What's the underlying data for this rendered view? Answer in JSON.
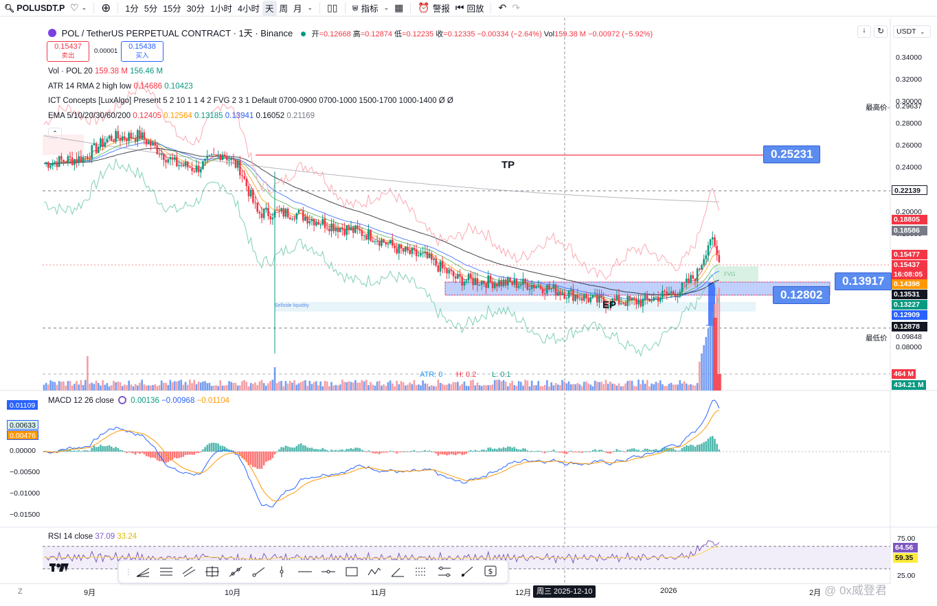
{
  "toolbar": {
    "symbol": "POLUSDT.P",
    "timeframes": [
      "1分",
      "5分",
      "15分",
      "30分",
      "1小时",
      "4小时",
      "天",
      "周",
      "月"
    ],
    "active_timeframe": "天",
    "indicators_label": "指标",
    "alert_label": "警报",
    "replay_label": "回放"
  },
  "header": {
    "title": "POL / TetherUS PERPETUAL CONTRACT · 1天 · Binance",
    "ohlc": {
      "open_label": "开",
      "open": "=0.12668",
      "high_label": "高",
      "high": "=0.12874",
      "low_label": "低",
      "low": "=0.12235",
      "close_label": "收",
      "close": "=0.12335",
      "change": "−0.00334 (−2.64%)"
    },
    "vol_label": "Vol",
    "vol_value": "159.38 M",
    "vol_change": "−0.00972 (−5.92%)",
    "currency": "USDT"
  },
  "order": {
    "sell_price": "0.15437",
    "sell_label": "卖出",
    "spread": "0.00001",
    "buy_price": "0.15438",
    "buy_label": "买入"
  },
  "indicators": [
    {
      "name": "Vol · POL 20",
      "values": [
        "159.38 M",
        "156.46 M"
      ]
    },
    {
      "name": "ATR 14 RMA 2 high low",
      "values": [
        "0.14686",
        "0.10423"
      ]
    },
    {
      "name": "ICT Concepts [LuxAlgo] Present 5 2 10 1 1 4 2 FVG 2 3 1 Default 0700-0900 0700-1000 1500-1700 1000-1400  Ø  Ø",
      "values": []
    },
    {
      "name": "EMA 5/10/20/30/60/200",
      "values": [
        "0.12405",
        "0.12564",
        "0.13185",
        "0.13941",
        "0.16052",
        "0.21169"
      ]
    }
  ],
  "annotations": {
    "tp_label": "TP",
    "ep_label": "EP",
    "tp_price": "0.25231",
    "entry_high": "0.13917",
    "entry_low": "0.12802",
    "fvg_label": "FVG",
    "sellside_label": "Sellside liquidity",
    "atr_text": "ATR: 0",
    "h_text": "H: 0.2",
    "l_text": "L: 0.1"
  },
  "price_axis": {
    "ticks": [
      "0.34000",
      "0.32000",
      "0.30000",
      "0.28000",
      "0.26000",
      "0.24000",
      "0.20000",
      "0.18000",
      "0.08000"
    ],
    "highest_label": "最高价",
    "highest": "0.29637",
    "lowest_label": "最低价",
    "lowest": "0.09848",
    "levels": [
      {
        "value": "0.22139",
        "color": "#ffffff",
        "text": "#131722"
      },
      {
        "value": "0.18805",
        "color": "#f23645",
        "text": "#ffffff"
      },
      {
        "value": "0.18586",
        "color": "#787b86",
        "text": "#ffffff"
      },
      {
        "value": "0.15477",
        "color": "#f23645",
        "text": "#ffffff"
      },
      {
        "value": "0.15437",
        "color": "#f23645",
        "text": "#ffffff"
      },
      {
        "value": "16:08:05",
        "color": "#f23645",
        "text": "#ffffff"
      },
      {
        "value": "0.14398",
        "color": "#ff9800",
        "text": "#ffffff"
      },
      {
        "value": "0.13531",
        "color": "#131722",
        "text": "#ffffff"
      },
      {
        "value": "0.13227",
        "color": "#089981",
        "text": "#ffffff"
      },
      {
        "value": "0.12909",
        "color": "#2962ff",
        "text": "#ffffff"
      },
      {
        "value": "0.12878",
        "color": "#131722",
        "text": "#ffffff"
      }
    ],
    "vol_levels": [
      {
        "value": "464 M",
        "color": "#f23645"
      },
      {
        "value": "434.21 M",
        "color": "#089981"
      }
    ]
  },
  "macd": {
    "title": "MACD 12 26 close",
    "values": [
      "0.00136",
      "−0.00968",
      "−0.01104"
    ],
    "axis": [
      "0.00000",
      "−0.00500",
      "−0.01000",
      "−0.01500"
    ],
    "labels": [
      {
        "value": "0.01109",
        "color": "#2962ff"
      },
      {
        "value": "0.00633",
        "color": "#d7f0ea"
      },
      {
        "value": "0.00476",
        "color": "#ff9800"
      }
    ]
  },
  "rsi": {
    "title": "RSI 14 close",
    "values": [
      "37.09",
      "33.24"
    ],
    "axis": [
      "75.00",
      "25.00"
    ],
    "labels": [
      {
        "value": "64.56",
        "color": "#7e57c2"
      },
      {
        "value": "59.35",
        "color": "#ffeb3b"
      }
    ]
  },
  "time_axis": {
    "labels": [
      "9月",
      "10月",
      "11月",
      "12月",
      "2026",
      "2月"
    ],
    "cursor": "周三 2025-12-10"
  },
  "watermark": "@ 0x威登君",
  "logo": "TV",
  "z_label": "Z"
}
